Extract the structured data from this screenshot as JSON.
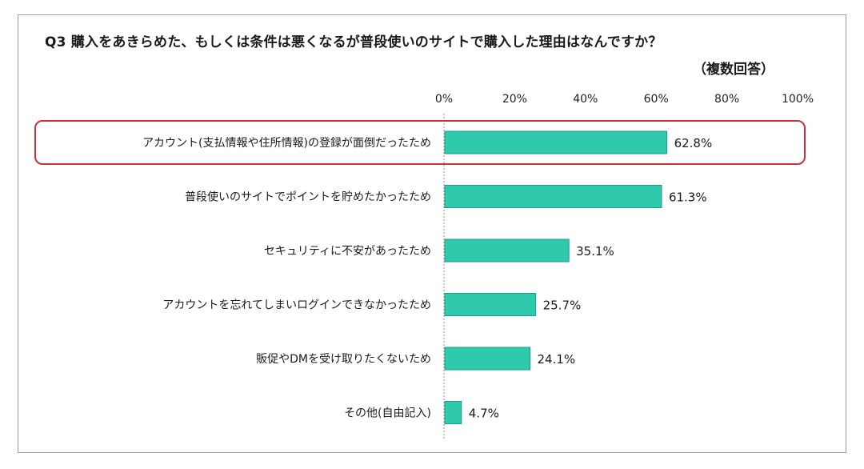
{
  "chart_data": {
    "type": "bar",
    "orientation": "horizontal",
    "title": "Q3 購入をあきらめた、もしくは条件は悪くなるが普段使いのサイトで購入した理由はなんですか？",
    "subtitle": "（複数回答）",
    "categories": [
      "アカウント(支払情報や住所情報)の登録が面倒だったため",
      "普段使いのサイトでポイントを貯めたかったため",
      "セキュリティに不安があったため",
      "アカウントを忘れてしまいログインできなかったため",
      "販促やDMを受け取りたくないため",
      "その他(自由記入)"
    ],
    "values": [
      62.8,
      61.3,
      35.1,
      25.7,
      24.1,
      4.7
    ],
    "value_labels": [
      "62.8%",
      "61.3%",
      "35.1%",
      "25.7%",
      "24.1%",
      "4.7%"
    ],
    "xlim": [
      0,
      100
    ],
    "xticks": [
      "0%",
      "20%",
      "40%",
      "60%",
      "80%",
      "100%"
    ],
    "xtick_values": [
      0,
      20,
      40,
      60,
      80,
      100
    ],
    "highlighted_category_index": 0,
    "grid": false,
    "bar_color": "#2fc9ab",
    "bar_edge_color": "#1c9f86",
    "highlight_color": "#c8323a"
  }
}
